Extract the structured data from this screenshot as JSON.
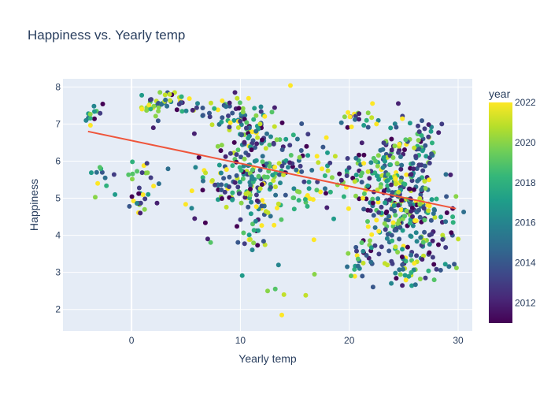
{
  "chart_data": {
    "type": "scatter",
    "title": "Happiness vs. Yearly temp",
    "xlabel": "Yearly temp",
    "ylabel": "Happiness",
    "xlim": [
      -6.3,
      31.3
    ],
    "ylim": [
      1.42,
      8.22
    ],
    "x_ticks": [
      0,
      10,
      20,
      30
    ],
    "y_ticks": [
      2,
      3,
      4,
      5,
      6,
      7,
      8
    ],
    "grid": true,
    "background": "#E5ECF6",
    "trendline": {
      "color": "#EF553B",
      "x": [
        -4.0,
        29.8
      ],
      "y": [
        6.8,
        4.72
      ]
    },
    "colorbar": {
      "title": "year",
      "range": [
        2011,
        2022
      ],
      "ticks": [
        2012,
        2014,
        2016,
        2018,
        2020,
        2022
      ],
      "colorscale": [
        "#440154",
        "#482878",
        "#3e4989",
        "#31688e",
        "#26828e",
        "#1f9e89",
        "#35b779",
        "#6ece58",
        "#b5de2b",
        "#fde725"
      ]
    },
    "clusters": [
      {
        "cx": -3.5,
        "cy": 7.3,
        "sx": 0.6,
        "sy": 0.15,
        "n": 12
      },
      {
        "cx": -3.0,
        "cy": 5.6,
        "sx": 0.6,
        "sy": 0.25,
        "n": 10
      },
      {
        "cx": 1.0,
        "cy": 5.2,
        "sx": 1.0,
        "sy": 0.4,
        "n": 30
      },
      {
        "cx": 3.0,
        "cy": 7.5,
        "sx": 1.5,
        "sy": 0.15,
        "n": 45
      },
      {
        "cx": 7.5,
        "cy": 7.3,
        "sx": 1.0,
        "sy": 0.25,
        "n": 20
      },
      {
        "cx": 10.5,
        "cy": 7.0,
        "sx": 1.0,
        "sy": 0.4,
        "n": 60
      },
      {
        "cx": 10.0,
        "cy": 5.5,
        "sx": 2.0,
        "sy": 0.6,
        "n": 150
      },
      {
        "cx": 13.5,
        "cy": 6.0,
        "sx": 1.5,
        "sy": 0.6,
        "n": 60
      },
      {
        "cx": 11.5,
        "cy": 4.0,
        "sx": 1.2,
        "sy": 0.5,
        "n": 25
      },
      {
        "cx": 16.5,
        "cy": 5.7,
        "sx": 1.5,
        "sy": 0.7,
        "n": 40
      },
      {
        "cx": 21.0,
        "cy": 7.2,
        "sx": 1.0,
        "sy": 0.15,
        "n": 18
      },
      {
        "cx": 21.5,
        "cy": 5.5,
        "sx": 1.5,
        "sy": 0.6,
        "n": 70
      },
      {
        "cx": 21.0,
        "cy": 3.3,
        "sx": 1.0,
        "sy": 0.3,
        "n": 25
      },
      {
        "cx": 24.5,
        "cy": 4.8,
        "sx": 1.5,
        "sy": 0.8,
        "n": 220
      },
      {
        "cx": 26.0,
        "cy": 6.3,
        "sx": 1.2,
        "sy": 0.5,
        "n": 70
      },
      {
        "cx": 27.5,
        "cy": 4.2,
        "sx": 1.2,
        "sy": 0.6,
        "n": 70
      },
      {
        "cx": 25.5,
        "cy": 3.3,
        "sx": 1.0,
        "sy": 0.4,
        "n": 25
      }
    ],
    "points": [
      {
        "x": 12.5,
        "y": 2.5,
        "year": 2020
      },
      {
        "x": 13.2,
        "y": 2.55,
        "year": 2019
      },
      {
        "x": 14.0,
        "y": 2.4,
        "year": 2021
      },
      {
        "x": 16.0,
        "y": 2.38,
        "year": 2021
      },
      {
        "x": 13.8,
        "y": 1.85,
        "year": 2022
      },
      {
        "x": 16.8,
        "y": 2.95,
        "year": 2020
      },
      {
        "x": 27.8,
        "y": 2.8,
        "year": 2019
      },
      {
        "x": 27.0,
        "y": 2.85,
        "year": 2013
      },
      {
        "x": 21.2,
        "y": 2.9,
        "year": 2014
      },
      {
        "x": 7.0,
        "y": 3.9,
        "year": 2012
      },
      {
        "x": 13.5,
        "y": 3.2,
        "year": 2016
      },
      {
        "x": 5.8,
        "y": 4.45,
        "year": 2012
      },
      {
        "x": 0.8,
        "y": 4.6,
        "year": 2012
      },
      {
        "x": -0.2,
        "y": 4.78,
        "year": 2014
      },
      {
        "x": 2.0,
        "y": 6.9,
        "year": 2012
      },
      {
        "x": 9.5,
        "y": 7.85,
        "year": 2012
      },
      {
        "x": 3.5,
        "y": 7.8,
        "year": 2021
      },
      {
        "x": 22.5,
        "y": 7.0,
        "year": 2022
      },
      {
        "x": 28.5,
        "y": 7.0,
        "year": 2013
      },
      {
        "x": 29.8,
        "y": 5.05,
        "year": 2020
      },
      {
        "x": 29.5,
        "y": 4.5,
        "year": 2018
      },
      {
        "x": 23.5,
        "y": 3.2,
        "year": 2021
      }
    ]
  }
}
